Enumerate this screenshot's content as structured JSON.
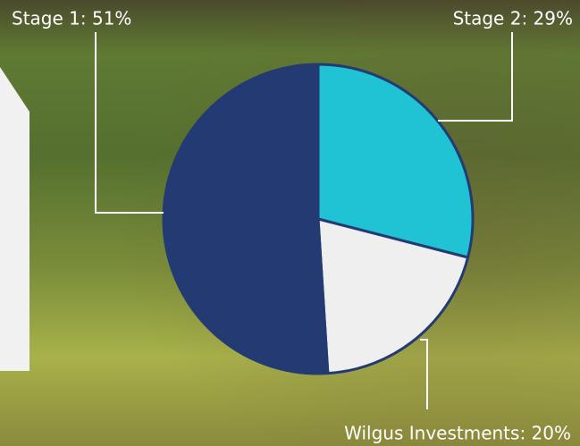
{
  "chart_data": {
    "type": "pie",
    "values": [
      29,
      20,
      51
    ],
    "value_labels": [
      "Stage 2: 29%",
      "Wilgus Investments: 20%",
      "Stage 1: 51%"
    ],
    "colors": [
      "#1fc3d3",
      "#efefef",
      "#233a73"
    ]
  }
}
